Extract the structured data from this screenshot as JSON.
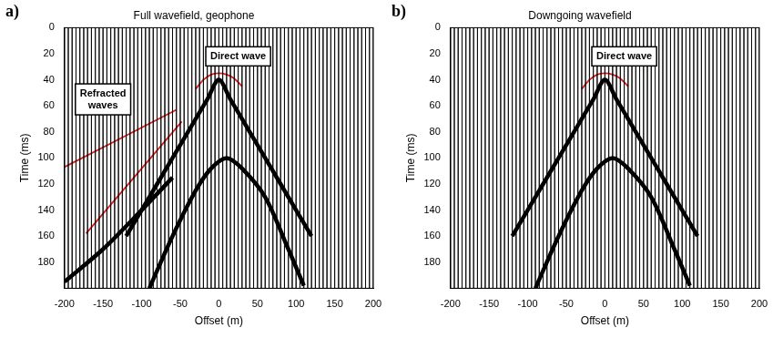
{
  "chart_data": [
    {
      "type": "line",
      "label": "a)",
      "title": "Full wavefield, geophone",
      "x_label": "Offset (m)",
      "y_label": "Time (ms)",
      "xlim": [
        -200,
        200
      ],
      "xticks": [
        -200,
        -150,
        -100,
        -50,
        0,
        50,
        100,
        150,
        200
      ],
      "ylim": [
        0,
        200
      ],
      "yticks": [
        0,
        20,
        40,
        60,
        80,
        100,
        120,
        140,
        160,
        180
      ],
      "grid": false,
      "traces": {
        "color": "#000000",
        "offsets": [
          -200,
          -195,
          -190,
          -185,
          -180,
          -175,
          -170,
          -165,
          -160,
          -155,
          -150,
          -145,
          -140,
          -135,
          -130,
          -125,
          -120,
          -115,
          -110,
          -105,
          -100,
          -95,
          -90,
          -85,
          -80,
          -75,
          -70,
          -65,
          -60,
          -55,
          -50,
          -45,
          -40,
          -35,
          -30,
          -25,
          -20,
          -15,
          -10,
          -5,
          0,
          5,
          10,
          15,
          20,
          25,
          30,
          35,
          40,
          45,
          50,
          55,
          60,
          65,
          70,
          75,
          80,
          85,
          90,
          95,
          100,
          105,
          110,
          115,
          120,
          125,
          130,
          135,
          140,
          145,
          150,
          155,
          160,
          165,
          170,
          175,
          180,
          185,
          190,
          195,
          200
        ]
      },
      "series": [
        {
          "color": "#000000",
          "x": [
            -120,
            -80,
            -40,
            -15,
            0,
            15,
            40,
            80,
            120
          ],
          "values": [
            160,
            120,
            80,
            55,
            40,
            55,
            80,
            120,
            160
          ]
        },
        {
          "color": "#000000",
          "x": [
            -90,
            -60,
            -30,
            -10,
            10,
            30,
            60,
            90,
            110
          ],
          "values": [
            200,
            160,
            125,
            108,
            100,
            108,
            130,
            170,
            198
          ]
        },
        {
          "color": "#000000",
          "x": [
            -200,
            -150,
            -100,
            -60
          ],
          "values": [
            195,
            170,
            140,
            115
          ]
        },
        {
          "color": "#e31a1c",
          "x": [
            -30,
            -20,
            -10,
            0,
            10,
            20,
            30
          ],
          "values": [
            47,
            40,
            36,
            35,
            36,
            39,
            45
          ]
        },
        {
          "color": "#e31a1c",
          "x": [
            -200,
            -55
          ],
          "values": [
            107,
            63
          ]
        },
        {
          "color": "#e31a1c",
          "x": [
            -172,
            -48
          ],
          "values": [
            158,
            72
          ]
        }
      ],
      "annotations": [
        {
          "text": "Direct wave",
          "x": 25,
          "y": 22
        },
        {
          "text": "Refracted waves",
          "x": -150,
          "y": 55
        }
      ]
    },
    {
      "type": "line",
      "label": "b)",
      "title": "Downgoing wavefield",
      "x_label": "Offset (m)",
      "y_label": "Time (ms)",
      "xlim": [
        -200,
        200
      ],
      "xticks": [
        -200,
        -150,
        -100,
        -50,
        0,
        50,
        100,
        150,
        200
      ],
      "ylim": [
        0,
        200
      ],
      "yticks": [
        0,
        20,
        40,
        60,
        80,
        100,
        120,
        140,
        160,
        180
      ],
      "grid": false,
      "traces": {
        "color": "#000000",
        "offsets": [
          -200,
          -195,
          -190,
          -185,
          -180,
          -175,
          -170,
          -165,
          -160,
          -155,
          -150,
          -145,
          -140,
          -135,
          -130,
          -125,
          -120,
          -115,
          -110,
          -105,
          -100,
          -95,
          -90,
          -85,
          -80,
          -75,
          -70,
          -65,
          -60,
          -55,
          -50,
          -45,
          -40,
          -35,
          -30,
          -25,
          -20,
          -15,
          -10,
          -5,
          0,
          5,
          10,
          15,
          20,
          25,
          30,
          35,
          40,
          45,
          50,
          55,
          60,
          65,
          70,
          75,
          80,
          85,
          90,
          95,
          100,
          105,
          110,
          115,
          120,
          125,
          130,
          135,
          140,
          145,
          150,
          155,
          160,
          165,
          170,
          175,
          180,
          185,
          190,
          195,
          200
        ]
      },
      "series": [
        {
          "color": "#000000",
          "x": [
            -120,
            -80,
            -40,
            -15,
            0,
            15,
            40,
            80,
            120
          ],
          "values": [
            160,
            120,
            80,
            55,
            40,
            55,
            80,
            120,
            160
          ]
        },
        {
          "color": "#000000",
          "x": [
            -90,
            -60,
            -30,
            -10,
            10,
            30,
            60,
            90,
            110
          ],
          "values": [
            200,
            160,
            125,
            108,
            100,
            108,
            130,
            170,
            198
          ]
        },
        {
          "color": "#e31a1c",
          "x": [
            -30,
            -20,
            -10,
            0,
            10,
            20,
            30
          ],
          "values": [
            47,
            40,
            36,
            35,
            36,
            39,
            45
          ]
        }
      ],
      "annotations": [
        {
          "text": "Direct wave",
          "x": 25,
          "y": 22
        }
      ]
    }
  ]
}
